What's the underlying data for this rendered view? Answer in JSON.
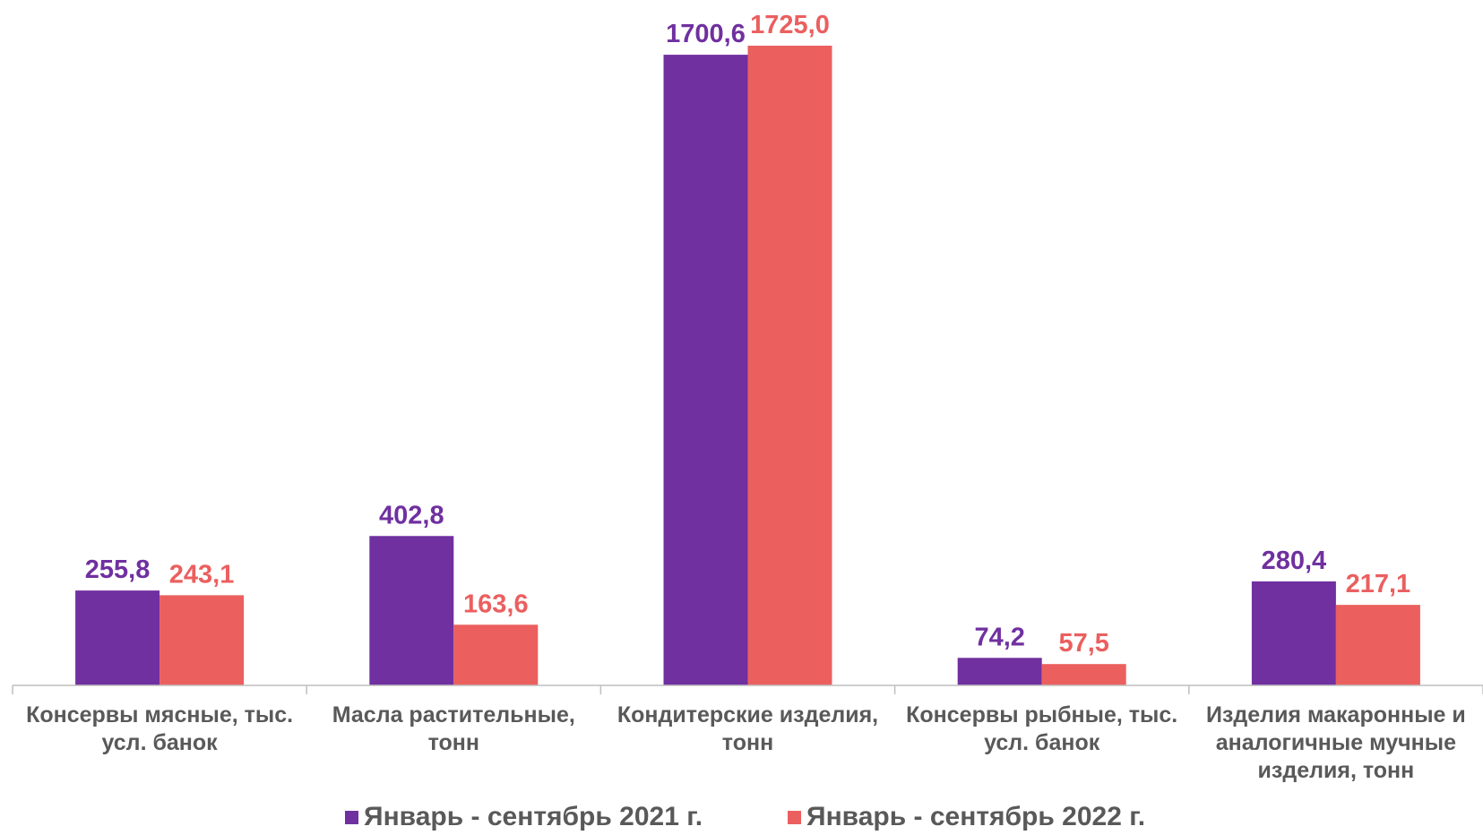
{
  "chart_data": {
    "type": "bar",
    "title": "",
    "xlabel": "",
    "ylabel": "",
    "ylim": [
      0,
      1725.0
    ],
    "grid": false,
    "legend_position": "bottom",
    "categories": [
      [
        "Консервы мясные, тыс.",
        "усл. банок"
      ],
      [
        "Масла растительные,",
        "тонн"
      ],
      [
        "Кондитерские изделия,",
        "тонн"
      ],
      [
        "Консервы рыбные, тыс.",
        "усл. банок"
      ],
      [
        "Изделия макаронные и",
        "аналогичные мучные",
        "изделия, тонн"
      ]
    ],
    "series": [
      {
        "name": "Январь - сентябрь 2021 г.",
        "color": "#7030A0",
        "values": [
          255.8,
          402.8,
          1700.6,
          74.2,
          280.4
        ],
        "labels": [
          "255,8",
          "402,8",
          "1700,6",
          "74,2",
          "280,4"
        ]
      },
      {
        "name": "Январь - сентябрь 2022 г.",
        "color": "#EB5F5F",
        "values": [
          243.1,
          163.6,
          1725.0,
          57.5,
          217.1
        ],
        "labels": [
          "243,1",
          "163,6",
          "1725,0",
          "57,5",
          "217,1"
        ]
      }
    ]
  }
}
